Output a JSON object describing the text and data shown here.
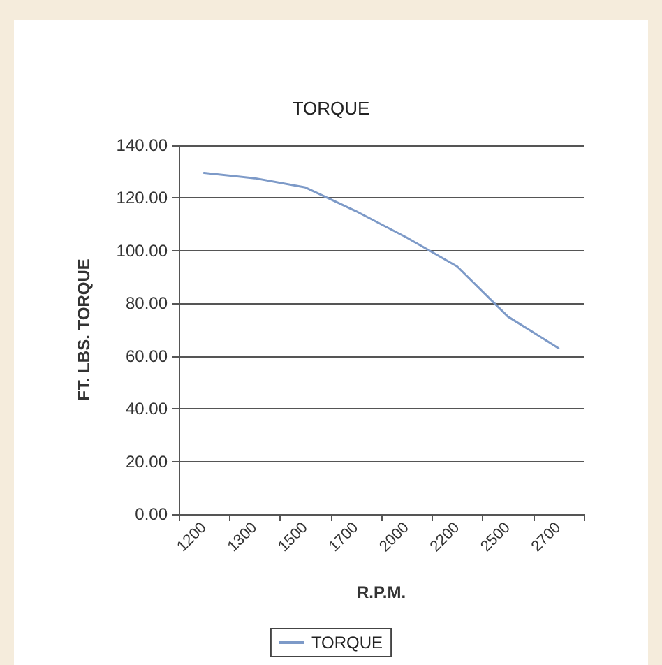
{
  "chart_data": {
    "type": "line",
    "title": "TORQUE",
    "xlabel": "R.P.M.",
    "ylabel": "FT. LBS. TORQUE",
    "categories": [
      "1200",
      "1300",
      "1500",
      "1700",
      "2000",
      "2200",
      "2500",
      "2700"
    ],
    "series": [
      {
        "name": "TORQUE",
        "color": "#7d9ac8",
        "values": [
          129.5,
          127.5,
          124,
          115,
          105,
          94,
          75,
          63
        ]
      }
    ],
    "ylim": [
      0,
      140
    ],
    "yticks": [
      {
        "value": 0,
        "label": "0.00"
      },
      {
        "value": 20,
        "label": "20.00"
      },
      {
        "value": 40,
        "label": "40.00"
      },
      {
        "value": 60,
        "label": "60.00"
      },
      {
        "value": 80,
        "label": "80.00"
      },
      {
        "value": 100,
        "label": "100.00"
      },
      {
        "value": 120,
        "label": "120.00"
      },
      {
        "value": 140,
        "label": "140.00"
      }
    ],
    "grid": "y",
    "legend": "bottom",
    "marker": "none",
    "line_style": "solid"
  }
}
